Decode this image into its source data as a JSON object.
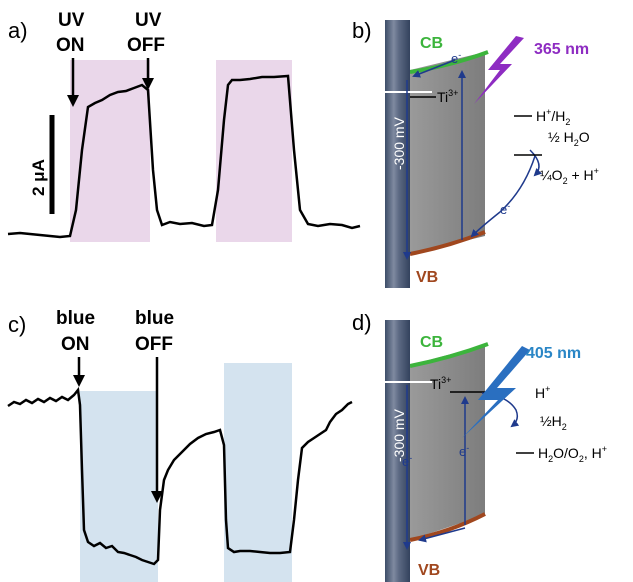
{
  "panels": {
    "a": {
      "label": "a)",
      "on_label": [
        "UV",
        "ON"
      ],
      "off_label": [
        "UV",
        "OFF"
      ],
      "scalebar_label": "2 μA",
      "shade_color": "#ead7ea"
    },
    "b": {
      "label": "b)",
      "cb": "CB",
      "vb": "VB",
      "wavelength": "365 nm",
      "wavelength_color": "#8e2cc2",
      "potential": "-300 mV",
      "ti": "Ti",
      "ti_sup": "3+",
      "electron": "e",
      "electron_sup": "-",
      "levels": {
        "h_plus_h2": {
          "main": "H",
          "sup": "+",
          "tail": "/H",
          "sub": "2"
        },
        "half_h2o": {
          "main": "½ H",
          "sub": "2",
          "tail": "O"
        },
        "quarter_o2": {
          "main": "¼O",
          "sub": "2",
          "tail": " + H",
          "sup": "+"
        }
      }
    },
    "c": {
      "label": "c)",
      "on_label": [
        "blue",
        "ON"
      ],
      "off_label": [
        "blue",
        "OFF"
      ],
      "shade_color": "#d4e3ef"
    },
    "d": {
      "label": "d)",
      "cb": "CB",
      "vb": "VB",
      "wavelength": "405 nm",
      "wavelength_color": "#2a86c6",
      "potential": "-300 mV",
      "ti": "Ti",
      "ti_sup": "3+",
      "electron": "e",
      "electron_sup": "-",
      "levels": {
        "h_plus": {
          "main": "H",
          "sup": "+"
        },
        "half_h2": {
          "main": "½H",
          "sub": "2"
        },
        "h2o_o2": {
          "main": "H",
          "sub": "2",
          "tail": "O/O",
          "sub2": "2",
          "tail2": ", H",
          "sup": "+"
        }
      }
    }
  },
  "colors": {
    "cb_line": "#3cb43c",
    "vb_line": "#a0471e",
    "band_fill": "#8d8d8d",
    "electrode": "#4e5e7a",
    "arrow": "#1f3a8c",
    "bolt_uv": "#8e2cc2",
    "bolt_blue": "#2a6fc0"
  }
}
